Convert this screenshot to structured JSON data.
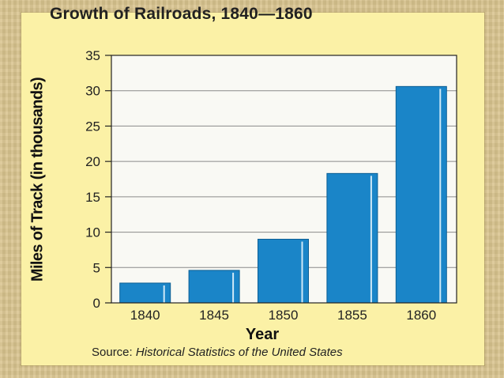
{
  "chart_data": {
    "type": "bar",
    "title": "Growth of Railroads, 1840—1860",
    "xlabel": "Year",
    "ylabel": "Miles of  Track (in thousands)",
    "categories": [
      "1840",
      "1845",
      "1850",
      "1855",
      "1860"
    ],
    "values": [
      2.8,
      4.6,
      9.0,
      18.3,
      30.6
    ],
    "ylim": [
      0,
      35
    ],
    "yticks": [
      0,
      5,
      10,
      15,
      20,
      25,
      30,
      35
    ],
    "grid": true,
    "bar_color": "#1a85c8"
  },
  "source": {
    "prefix": "Source: ",
    "title": "Historical Statistics of the United States"
  }
}
